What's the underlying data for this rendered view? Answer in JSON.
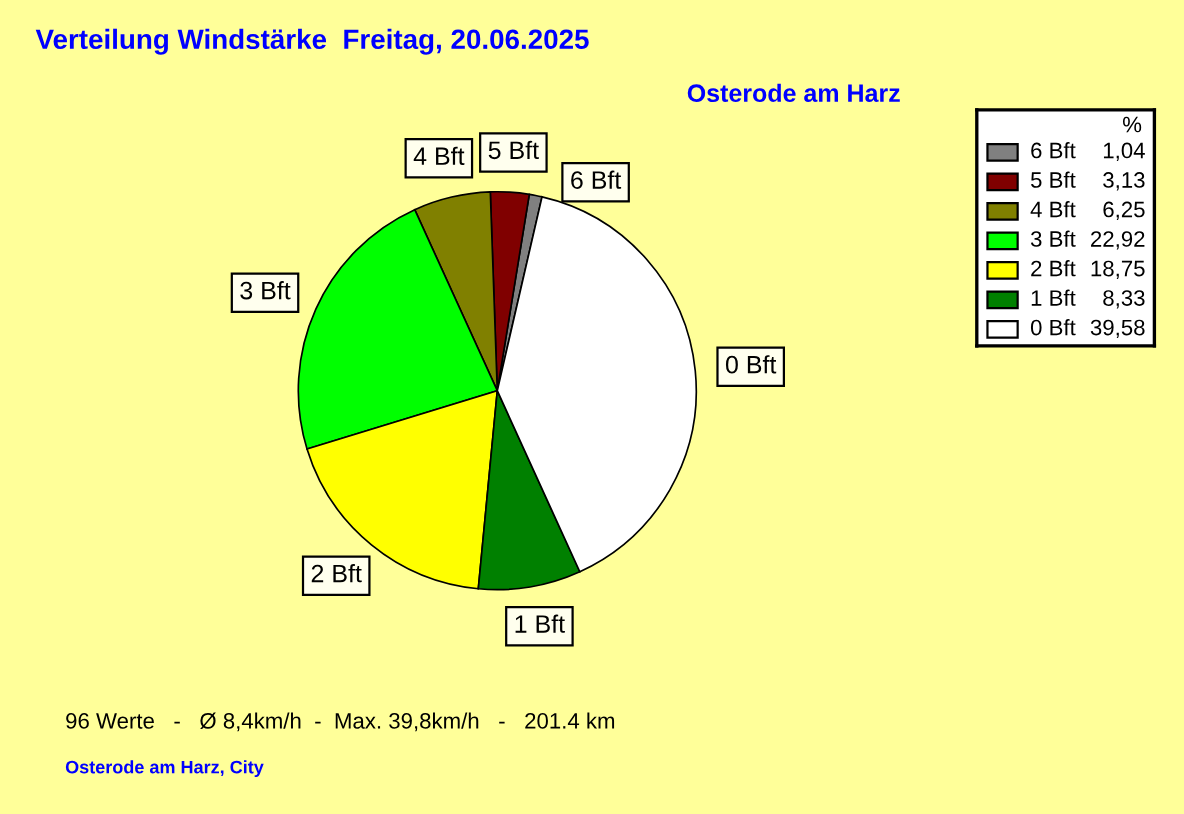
{
  "chart_data": {
    "type": "pie",
    "title": "Verteilung Windstärke  Freitag, 20.06.2025",
    "subtitle": "Osterode am Harz",
    "categories": [
      "6 Bft",
      "5 Bft",
      "4 Bft",
      "3 Bft",
      "2 Bft",
      "1 Bft",
      "0 Bft"
    ],
    "values": [
      1.04,
      3.13,
      6.25,
      22.92,
      18.75,
      8.33,
      39.58
    ],
    "value_labels": [
      "1,04",
      "3,13",
      "6,25",
      "22,92",
      "18,75",
      "8,33",
      "39,58"
    ],
    "colors": [
      "#808080",
      "#800000",
      "#808000",
      "#00ff00",
      "#ffff00",
      "#008000",
      "#ffffff"
    ],
    "legend": "top right",
    "legend_title": "%",
    "annotations": [
      "96 Werte   -   Ø 8,4km/h  -  Max. 39,8km/h   -   201.4 km",
      "Osterode am Harz, City"
    ]
  }
}
